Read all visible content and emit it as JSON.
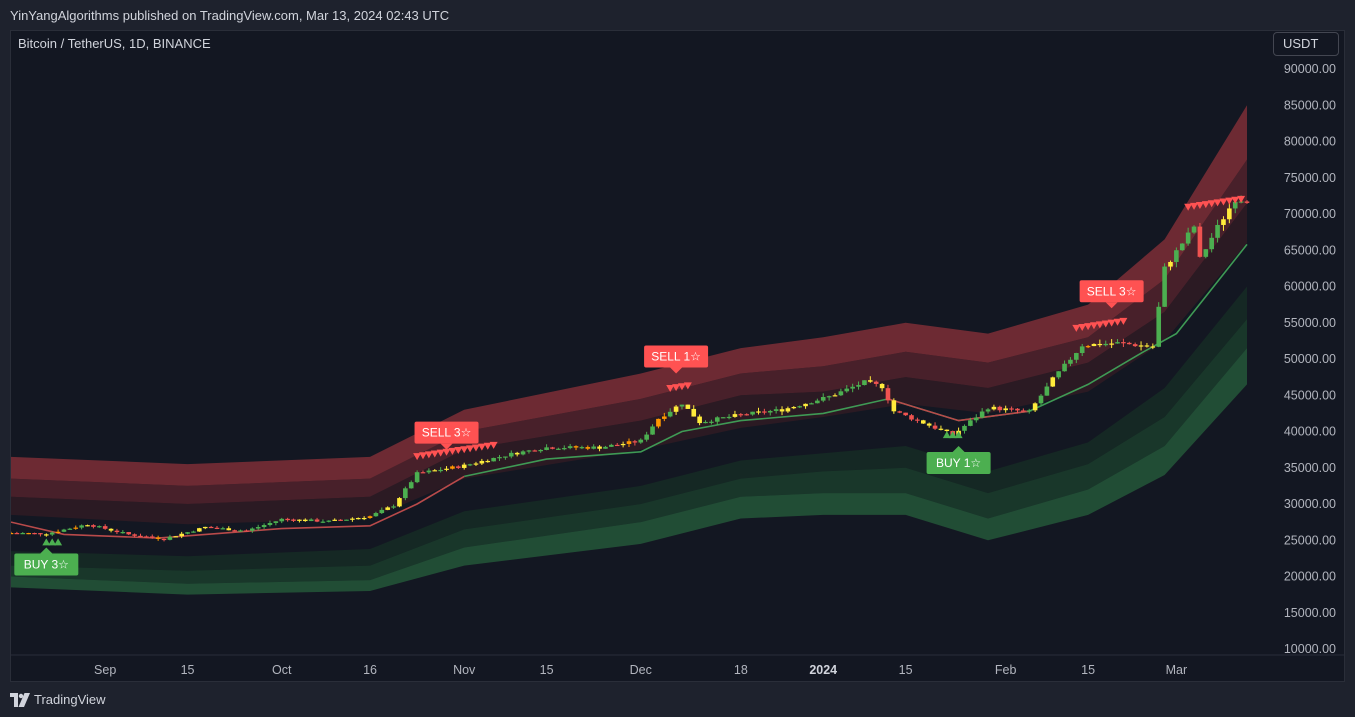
{
  "publisher_line": "YinYangAlgorithms published on TradingView.com, Mar 13, 2024 02:43 UTC",
  "symbol_line": "Bitcoin / TetherUS, 1D, BINANCE",
  "currency": "USDT",
  "brand": "TradingView",
  "colors": {
    "background": "#131722",
    "up": "#4caf50",
    "down": "#ef5350",
    "neutral": "#ffeb3b",
    "sell": "#ff5252",
    "buy": "#4caf50"
  },
  "icons": [
    "tradingview-logo-icon"
  ],
  "chart_data": {
    "type": "candlestick",
    "title": "",
    "xlabel": "",
    "ylabel": "",
    "ylim": [
      10000,
      90000
    ],
    "y_ticks": [
      "90000.00",
      "85000.00",
      "80000.00",
      "75000.00",
      "70000.00",
      "65000.00",
      "60000.00",
      "55000.00",
      "50000.00",
      "45000.00",
      "40000.00",
      "35000.00",
      "30000.00",
      "25000.00",
      "20000.00",
      "15000.00",
      "10000.00"
    ],
    "x_ticks": [
      {
        "label": "Sep",
        "date": "2023-09-01",
        "bold": false
      },
      {
        "label": "15",
        "date": "2023-09-15",
        "bold": false
      },
      {
        "label": "Oct",
        "date": "2023-10-01",
        "bold": false
      },
      {
        "label": "16",
        "date": "2023-10-16",
        "bold": false
      },
      {
        "label": "Nov",
        "date": "2023-11-01",
        "bold": false
      },
      {
        "label": "15",
        "date": "2023-11-15",
        "bold": false
      },
      {
        "label": "Dec",
        "date": "2023-12-01",
        "bold": false
      },
      {
        "label": "18",
        "date": "2023-12-18",
        "bold": false
      },
      {
        "label": "2024",
        "date": "2024-01-01",
        "bold": true
      },
      {
        "label": "15",
        "date": "2024-01-15",
        "bold": false
      },
      {
        "label": "Feb",
        "date": "2024-02-01",
        "bold": false
      },
      {
        "label": "15",
        "date": "2024-02-15",
        "bold": false
      },
      {
        "label": "Mar",
        "date": "2024-03-01",
        "bold": false
      }
    ],
    "x_range": [
      "2023-08-16",
      "2024-03-13"
    ],
    "close_anchors": [
      [
        "2023-08-16",
        26000
      ],
      [
        "2023-08-22",
        25900
      ],
      [
        "2023-08-29",
        27200
      ],
      [
        "2023-09-05",
        25800
      ],
      [
        "2023-09-11",
        25200
      ],
      [
        "2023-09-18",
        26800
      ],
      [
        "2023-09-25",
        26300
      ],
      [
        "2023-10-01",
        27900
      ],
      [
        "2023-10-09",
        27600
      ],
      [
        "2023-10-16",
        28300
      ],
      [
        "2023-10-20",
        29800
      ],
      [
        "2023-10-24",
        34200
      ],
      [
        "2023-11-01",
        35300
      ],
      [
        "2023-11-09",
        36900
      ],
      [
        "2023-11-15",
        37800
      ],
      [
        "2023-11-24",
        37800
      ],
      [
        "2023-12-01",
        38700
      ],
      [
        "2023-12-04",
        41800
      ],
      [
        "2023-12-08",
        43900
      ],
      [
        "2023-12-11",
        41300
      ],
      [
        "2023-12-18",
        42300
      ],
      [
        "2023-12-25",
        43000
      ],
      [
        "2024-01-02",
        44800
      ],
      [
        "2024-01-08",
        46800
      ],
      [
        "2024-01-11",
        46200
      ],
      [
        "2024-01-13",
        42800
      ],
      [
        "2024-01-18",
        41200
      ],
      [
        "2024-01-23",
        39500
      ],
      [
        "2024-01-29",
        43300
      ],
      [
        "2024-02-05",
        42700
      ],
      [
        "2024-02-09",
        47200
      ],
      [
        "2024-02-14",
        51900
      ],
      [
        "2024-02-20",
        52200
      ],
      [
        "2024-02-26",
        51700
      ],
      [
        "2024-02-28",
        62500
      ],
      [
        "2024-03-04",
        68300
      ],
      [
        "2024-03-05",
        63800
      ],
      [
        "2024-03-08",
        68200
      ],
      [
        "2024-03-11",
        72100
      ],
      [
        "2024-03-13",
        71900
      ]
    ],
    "bands": {
      "upper": [
        {
          "name": "outer",
          "color": "#b83a42",
          "opacity": 0.55,
          "top": [
            [
              "2023-08-16",
              36500
            ],
            [
              "2023-09-15",
              35500
            ],
            [
              "2023-10-16",
              36500
            ],
            [
              "2023-11-01",
              43000
            ],
            [
              "2023-12-01",
              48000
            ],
            [
              "2023-12-18",
              51500
            ],
            [
              "2024-01-01",
              53000
            ],
            [
              "2024-01-15",
              55000
            ],
            [
              "2024-01-29",
              53500
            ],
            [
              "2024-02-15",
              57500
            ],
            [
              "2024-02-28",
              66500
            ],
            [
              "2024-03-13",
              85000
            ]
          ],
          "bottom": [
            [
              "2023-08-16",
              33500
            ],
            [
              "2023-09-15",
              32500
            ],
            [
              "2023-10-16",
              33500
            ],
            [
              "2023-11-01",
              40000
            ],
            [
              "2023-12-01",
              44500
            ],
            [
              "2023-12-18",
              48000
            ],
            [
              "2024-01-01",
              49000
            ],
            [
              "2024-01-15",
              51000
            ],
            [
              "2024-01-29",
              49500
            ],
            [
              "2024-02-15",
              53000
            ],
            [
              "2024-02-28",
              61000
            ],
            [
              "2024-03-13",
              77500
            ]
          ]
        },
        {
          "name": "middle",
          "color": "#7e2a32",
          "opacity": 0.5,
          "top": [
            [
              "2023-08-16",
              33500
            ],
            [
              "2023-09-15",
              32500
            ],
            [
              "2023-10-16",
              33500
            ],
            [
              "2023-11-01",
              40000
            ],
            [
              "2023-12-01",
              44500
            ],
            [
              "2023-12-18",
              48000
            ],
            [
              "2024-01-01",
              49000
            ],
            [
              "2024-01-15",
              51000
            ],
            [
              "2024-01-29",
              49500
            ],
            [
              "2024-02-15",
              53000
            ],
            [
              "2024-02-28",
              61000
            ],
            [
              "2024-03-13",
              77500
            ]
          ],
          "bottom": [
            [
              "2023-08-16",
              31000
            ],
            [
              "2023-09-15",
              30000
            ],
            [
              "2023-10-16",
              31000
            ],
            [
              "2023-11-01",
              37500
            ],
            [
              "2023-12-01",
              41500
            ],
            [
              "2023-12-18",
              45000
            ],
            [
              "2024-01-01",
              45500
            ],
            [
              "2024-01-15",
              47500
            ],
            [
              "2024-01-29",
              46000
            ],
            [
              "2024-02-15",
              49500
            ],
            [
              "2024-02-28",
              56500
            ],
            [
              "2024-03-13",
              71500
            ]
          ]
        },
        {
          "name": "inner",
          "color": "#4a1e26",
          "opacity": 0.45,
          "top": [
            [
              "2023-08-16",
              31000
            ],
            [
              "2023-09-15",
              30000
            ],
            [
              "2023-10-16",
              31000
            ],
            [
              "2023-11-01",
              37500
            ],
            [
              "2023-12-01",
              41500
            ],
            [
              "2023-12-18",
              45000
            ],
            [
              "2024-01-01",
              45500
            ],
            [
              "2024-01-15",
              47500
            ],
            [
              "2024-01-29",
              46000
            ],
            [
              "2024-02-15",
              49500
            ],
            [
              "2024-02-28",
              56500
            ],
            [
              "2024-03-13",
              71500
            ]
          ],
          "bottom": [
            [
              "2023-08-16",
              28500
            ],
            [
              "2023-09-15",
              27200
            ],
            [
              "2023-10-16",
              28000
            ],
            [
              "2023-11-01",
              33500
            ],
            [
              "2023-12-01",
              37500
            ],
            [
              "2023-12-18",
              40500
            ],
            [
              "2024-01-01",
              42000
            ],
            [
              "2024-01-15",
              43800
            ],
            [
              "2024-01-29",
              42500
            ],
            [
              "2024-02-15",
              45500
            ],
            [
              "2024-02-28",
              52500
            ],
            [
              "2024-03-13",
              66000
            ]
          ]
        }
      ],
      "lower": [
        {
          "name": "inner",
          "color": "#173a26",
          "opacity": 0.5,
          "top": [
            [
              "2023-08-16",
              23500
            ],
            [
              "2023-09-15",
              22800
            ],
            [
              "2023-10-16",
              23800
            ],
            [
              "2023-11-01",
              29000
            ],
            [
              "2023-12-01",
              32500
            ],
            [
              "2023-12-18",
              36000
            ],
            [
              "2024-01-01",
              37000
            ],
            [
              "2024-01-15",
              38000
            ],
            [
              "2024-01-29",
              34500
            ],
            [
              "2024-02-15",
              38500
            ],
            [
              "2024-02-28",
              46000
            ],
            [
              "2024-03-13",
              60000
            ]
          ],
          "bottom": [
            [
              "2023-08-16",
              21500
            ],
            [
              "2023-09-15",
              20800
            ],
            [
              "2023-10-16",
              21500
            ],
            [
              "2023-11-01",
              26500
            ],
            [
              "2023-12-01",
              30000
            ],
            [
              "2023-12-18",
              33500
            ],
            [
              "2024-01-01",
              34500
            ],
            [
              "2024-01-15",
              35000
            ],
            [
              "2024-01-29",
              31500
            ],
            [
              "2024-02-15",
              35500
            ],
            [
              "2024-02-28",
              42000
            ],
            [
              "2024-03-13",
              55500
            ]
          ]
        },
        {
          "name": "middle",
          "color": "#1f5232",
          "opacity": 0.55,
          "top": [
            [
              "2023-08-16",
              21500
            ],
            [
              "2023-09-15",
              20800
            ],
            [
              "2023-10-16",
              21500
            ],
            [
              "2023-11-01",
              26500
            ],
            [
              "2023-12-01",
              30000
            ],
            [
              "2023-12-18",
              33500
            ],
            [
              "2024-01-01",
              34500
            ],
            [
              "2024-01-15",
              35000
            ],
            [
              "2024-01-29",
              31500
            ],
            [
              "2024-02-15",
              35500
            ],
            [
              "2024-02-28",
              42000
            ],
            [
              "2024-03-13",
              55500
            ]
          ],
          "bottom": [
            [
              "2023-08-16",
              20000
            ],
            [
              "2023-09-15",
              19000
            ],
            [
              "2023-10-16",
              19500
            ],
            [
              "2023-11-01",
              24000
            ],
            [
              "2023-12-01",
              27500
            ],
            [
              "2023-12-18",
              31000
            ],
            [
              "2024-01-01",
              31500
            ],
            [
              "2024-01-15",
              31500
            ],
            [
              "2024-01-29",
              28000
            ],
            [
              "2024-02-15",
              32000
            ],
            [
              "2024-02-28",
              38000
            ],
            [
              "2024-03-13",
              51500
            ]
          ]
        },
        {
          "name": "outer",
          "color": "#2e7a45",
          "opacity": 0.55,
          "top": [
            [
              "2023-08-16",
              20000
            ],
            [
              "2023-09-15",
              19000
            ],
            [
              "2023-10-16",
              19500
            ],
            [
              "2023-11-01",
              24000
            ],
            [
              "2023-12-01",
              27500
            ],
            [
              "2023-12-18",
              31000
            ],
            [
              "2024-01-01",
              31500
            ],
            [
              "2024-01-15",
              31500
            ],
            [
              "2024-01-29",
              28000
            ],
            [
              "2024-02-15",
              32000
            ],
            [
              "2024-02-28",
              38000
            ],
            [
              "2024-03-13",
              51500
            ]
          ],
          "bottom": [
            [
              "2023-08-16",
              18500
            ],
            [
              "2023-09-15",
              17500
            ],
            [
              "2023-10-16",
              18000
            ],
            [
              "2023-11-01",
              21500
            ],
            [
              "2023-12-01",
              24500
            ],
            [
              "2023-12-18",
              28000
            ],
            [
              "2024-01-01",
              28500
            ],
            [
              "2024-01-15",
              28500
            ],
            [
              "2024-01-29",
              25000
            ],
            [
              "2024-02-15",
              28500
            ],
            [
              "2024-02-28",
              34000
            ],
            [
              "2024-03-13",
              46500
            ]
          ]
        }
      ]
    },
    "basis_line": [
      [
        "2023-08-16",
        27500
      ],
      [
        "2023-08-25",
        25800
      ],
      [
        "2023-09-10",
        25300
      ],
      [
        "2023-10-01",
        26600
      ],
      [
        "2023-10-16",
        27000
      ],
      [
        "2023-10-24",
        30000
      ],
      [
        "2023-11-01",
        33800
      ],
      [
        "2023-11-15",
        36200
      ],
      [
        "2023-12-01",
        37200
      ],
      [
        "2023-12-08",
        40000
      ],
      [
        "2023-12-18",
        41500
      ],
      [
        "2024-01-01",
        42500
      ],
      [
        "2024-01-12",
        44500
      ],
      [
        "2024-01-24",
        41500
      ],
      [
        "2024-02-05",
        42800
      ],
      [
        "2024-02-15",
        46500
      ],
      [
        "2024-02-24",
        50800
      ],
      [
        "2024-03-01",
        53500
      ],
      [
        "2024-03-13",
        65800
      ]
    ],
    "labels": [
      {
        "text": "BUY 3☆",
        "date": "2023-08-22",
        "value": 24000,
        "type": "buy"
      },
      {
        "text": "SELL 3☆",
        "date": "2023-10-29",
        "value": 37500,
        "type": "sell"
      },
      {
        "text": "SELL 1☆",
        "date": "2023-12-07",
        "value": 48000,
        "type": "sell"
      },
      {
        "text": "BUY 1☆",
        "date": "2024-01-24",
        "value": 38000,
        "type": "buy"
      },
      {
        "text": "SELL 3☆",
        "date": "2024-02-19",
        "value": 57000,
        "type": "sell"
      }
    ],
    "sell_markers": [
      {
        "from": "2023-10-24",
        "to": "2023-11-06",
        "value": 36600
      },
      {
        "from": "2023-12-06",
        "to": "2023-12-09",
        "value": 46000
      },
      {
        "from": "2024-02-13",
        "to": "2024-02-21",
        "value": 54300
      },
      {
        "from": "2024-03-03",
        "to": "2024-03-12",
        "value": 71000
      }
    ],
    "buy_markers": [
      {
        "from": "2023-08-22",
        "to": "2023-08-24",
        "value": 24700
      },
      {
        "from": "2024-01-22",
        "to": "2024-01-24",
        "value": 39500
      }
    ]
  }
}
